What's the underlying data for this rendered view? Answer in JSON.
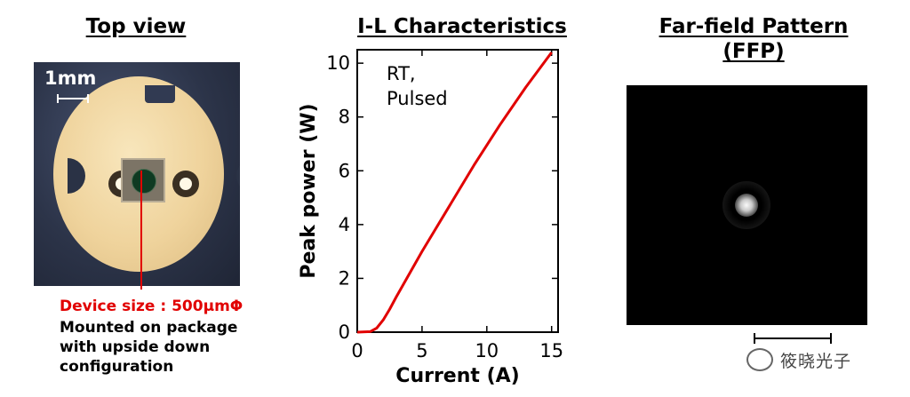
{
  "left_panel": {
    "title": "Top view",
    "scale_label": "1mm",
    "device_caption": "Device size : 500μmΦ",
    "mount_caption_lines": [
      "Mounted on package",
      "with upside down",
      "configuration"
    ]
  },
  "middle_panel": {
    "title": "I-L Characteristics"
  },
  "right_panel": {
    "title_lines": [
      "Far-field Pattern",
      "(FFP)"
    ]
  },
  "watermark": {
    "text": "筱晓光子"
  },
  "chart_data": {
    "type": "line",
    "title": "I-L Characteristics",
    "xlabel": "Current (A)",
    "ylabel": "Peak power (W)",
    "xlim": [
      0,
      15.5
    ],
    "ylim": [
      0,
      10.5
    ],
    "xticks": [
      0,
      5,
      10,
      15
    ],
    "yticks": [
      0,
      2,
      4,
      6,
      8,
      10
    ],
    "grid": false,
    "annotation": [
      "RT,",
      "Pulsed"
    ],
    "color": "#e10000",
    "series": [
      {
        "x": [
          0,
          1.0,
          1.5,
          2.0,
          2.5,
          3,
          5,
          7,
          9,
          11,
          13,
          15
        ],
        "y": [
          0,
          0.02,
          0.15,
          0.45,
          0.85,
          1.3,
          3.0,
          4.6,
          6.2,
          7.7,
          9.1,
          10.4
        ]
      }
    ]
  }
}
